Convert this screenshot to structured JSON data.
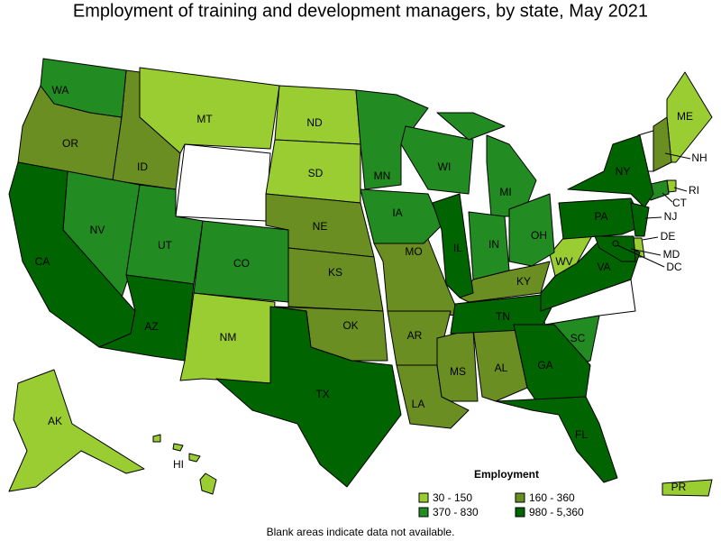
{
  "title": "Employment of training and development managers, by state, May 2021",
  "legend": {
    "title": "Employment",
    "items": [
      {
        "label": "30 - 150",
        "color": "#9acd32",
        "states": [
          "MT",
          "ND",
          "SD",
          "NM",
          "WV",
          "ME",
          "AK",
          "HI",
          "PR",
          "DE",
          "RI"
        ]
      },
      {
        "label": "160 - 360",
        "color": "#6b8e23",
        "states": [
          "OR",
          "ID",
          "NE",
          "KS",
          "OK",
          "MO",
          "AR",
          "LA",
          "MS",
          "AL",
          "KY",
          "NH"
        ]
      },
      {
        "label": "370 - 830",
        "color": "#228b22",
        "states": [
          "WA",
          "NV",
          "UT",
          "CO",
          "MN",
          "IA",
          "WI",
          "MI",
          "IN",
          "OH",
          "SC",
          "CT"
        ]
      },
      {
        "label": "980 - 5,360",
        "color": "#006400",
        "states": [
          "CA",
          "AZ",
          "TX",
          "IL",
          "TN",
          "GA",
          "FL",
          "VA",
          "PA",
          "NY",
          "NJ",
          "MD",
          "DC"
        ]
      }
    ]
  },
  "note": "Blank areas indicate data not available."
}
